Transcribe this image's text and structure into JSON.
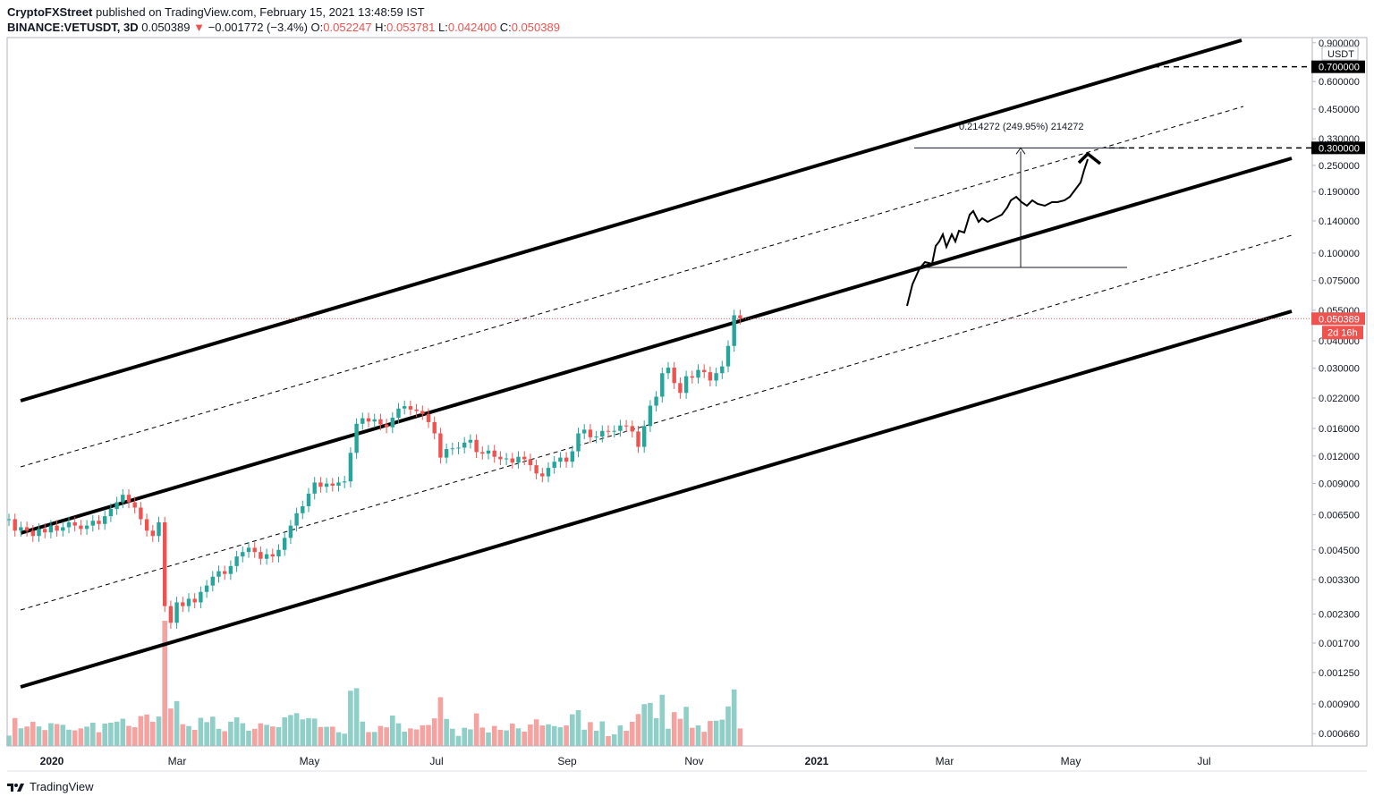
{
  "header": {
    "publisher": "CryptoFXStreet",
    "published_text": "published on TradingView.com, February 15, 2021 13:48:59 IST",
    "symbol": "BINANCE:VETUSDT, 3D",
    "last": "0.050389",
    "change": "−0.001772 (−3.4%)",
    "o_label": "O:",
    "o": "0.052247",
    "h_label": "H:",
    "h": "0.053781",
    "l_label": "L:",
    "l": "0.042400",
    "c_label": "C:",
    "c": "0.050389"
  },
  "footer": {
    "brand": "TradingView"
  },
  "colors": {
    "up": "#26a69a",
    "down": "#ef5350",
    "up_volume": "#8fcfc8",
    "down_volume": "#f4a3a1",
    "line": "#000000"
  },
  "chart_data": {
    "type": "candlestick",
    "y_scale": "log",
    "ylim": [
      0.00058,
      0.95
    ],
    "currency": "USDT",
    "y_ticks": [
      "0.900000",
      "0.600000",
      "0.450000",
      "0.330000",
      "0.250000",
      "0.190000",
      "0.140000",
      "0.100000",
      "0.075000",
      "0.055000",
      "0.040000",
      "0.030000",
      "0.022000",
      "0.016000",
      "0.012000",
      "0.009000",
      "0.006500",
      "0.004500",
      "0.003300",
      "0.002300",
      "0.001700",
      "0.001250",
      "0.000900",
      "0.000660"
    ],
    "x_ticks": [
      "2020",
      "Mar",
      "May",
      "Jul",
      "Sep",
      "Nov",
      "2021",
      "Mar",
      "May",
      "Jul"
    ],
    "price_tags": [
      {
        "label": "0.700000",
        "value": 0.7
      },
      {
        "label": "0.300000",
        "value": 0.3
      },
      {
        "label": "0.050389",
        "value": 0.050389
      }
    ],
    "countdown": "2d 16h",
    "measure_label": "0.214272 (249.95%) 214272",
    "candles_close": [
      0.0062,
      0.0055,
      0.0057,
      0.0055,
      0.0052,
      0.0056,
      0.0054,
      0.0058,
      0.0055,
      0.0057,
      0.006,
      0.0058,
      0.0056,
      0.0058,
      0.0061,
      0.0059,
      0.0064,
      0.0069,
      0.0074,
      0.008,
      0.0074,
      0.007,
      0.0062,
      0.0055,
      0.0052,
      0.006,
      0.0025,
      0.0021,
      0.0026,
      0.0025,
      0.0027,
      0.0026,
      0.0029,
      0.0031,
      0.0034,
      0.0036,
      0.0035,
      0.0038,
      0.0042,
      0.0044,
      0.0046,
      0.0044,
      0.0041,
      0.0043,
      0.0042,
      0.0045,
      0.0051,
      0.0058,
      0.0066,
      0.0071,
      0.0081,
      0.0091,
      0.0087,
      0.009,
      0.0088,
      0.0091,
      0.0092,
      0.0124,
      0.0168,
      0.0178,
      0.0172,
      0.0176,
      0.0167,
      0.0162,
      0.0179,
      0.0197,
      0.0202,
      0.0195,
      0.0192,
      0.0186,
      0.0171,
      0.0152,
      0.0118,
      0.0129,
      0.013,
      0.0131,
      0.0138,
      0.0142,
      0.0125,
      0.0123,
      0.0127,
      0.0119,
      0.0116,
      0.0117,
      0.0112,
      0.0119,
      0.0116,
      0.0109,
      0.01,
      0.0097,
      0.0106,
      0.0113,
      0.0118,
      0.0113,
      0.0126,
      0.0152,
      0.0158,
      0.0146,
      0.0147,
      0.0156,
      0.0155,
      0.0156,
      0.0165,
      0.0164,
      0.0155,
      0.0132,
      0.0164,
      0.0203,
      0.0223,
      0.0285,
      0.0302,
      0.0257,
      0.0232,
      0.0276,
      0.0272,
      0.0295,
      0.0288,
      0.0264,
      0.0285,
      0.0306,
      0.0379,
      0.0522,
      0.0504
    ]
  }
}
